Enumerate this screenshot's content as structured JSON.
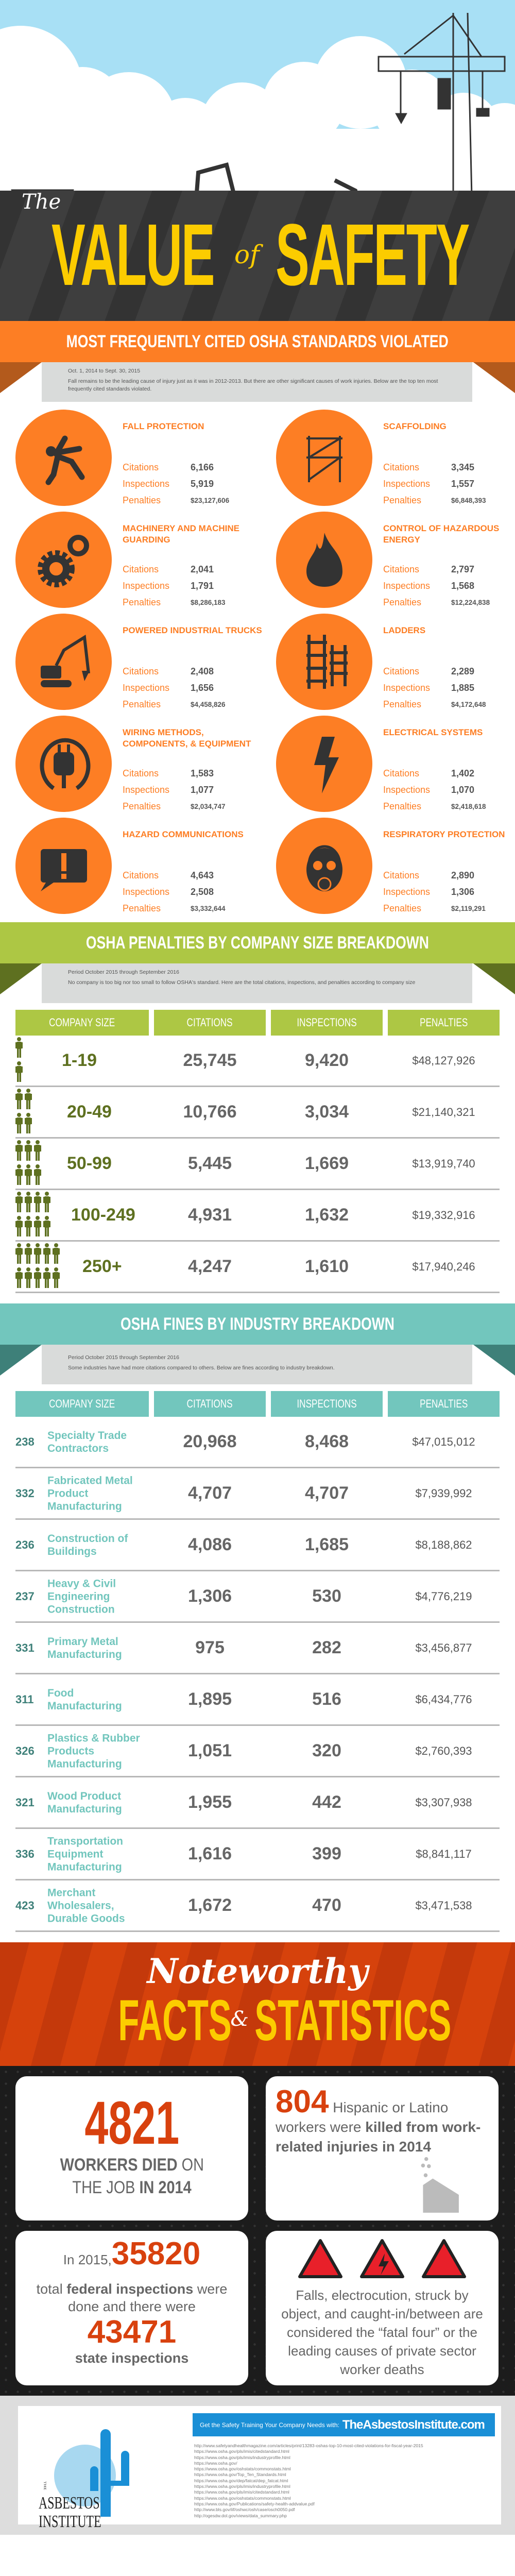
{
  "hero": {
    "the": "The",
    "value": "VALUE",
    "of": "of",
    "safety": "SAFETY"
  },
  "standards": {
    "title": "MOST FREQUENTLY CITED OSHA STANDARDS VIOLATED",
    "period": "Oct. 1, 2014 to Sept. 30, 2015",
    "description": "Fall remains to be the leading cause of injury just as it was in 2012-2013. But there are other significant causes of work injuries. Below are the top ten most frequently cited standards violated.",
    "labels": {
      "citations": "Citations",
      "inspections": "Inspections",
      "penalties": "Penalties"
    },
    "items": [
      {
        "name": "FALL PROTECTION",
        "icon": "falling-person-icon",
        "citations": "6,166",
        "inspections": "5,919",
        "penalties": "$23,127,606"
      },
      {
        "name": "SCAFFOLDING",
        "icon": "scaffolding-icon",
        "citations": "3,345",
        "inspections": "1,557",
        "penalties": "$6,848,393"
      },
      {
        "name": "MACHINERY AND MACHINE GUARDING",
        "icon": "gears-icon",
        "citations": "2,041",
        "inspections": "1,791",
        "penalties": "$8,286,183"
      },
      {
        "name": "CONTROL OF HAZARDOUS ENERGY",
        "icon": "fire-icon",
        "citations": "2,797",
        "inspections": "1,568",
        "penalties": "$12,224,838"
      },
      {
        "name": "POWERED INDUSTRIAL TRUCKS",
        "icon": "excavator-icon",
        "citations": "2,408",
        "inspections": "1,656",
        "penalties": "$4,458,826"
      },
      {
        "name": "LADDERS",
        "icon": "ladder-icon",
        "citations": "2,289",
        "inspections": "1,885",
        "penalties": "$4,172,648"
      },
      {
        "name": "WIRING METHODS, COMPONENTS, & EQUIPMENT",
        "icon": "plug-icon",
        "citations": "1,583",
        "inspections": "1,077",
        "penalties": "$2,034,747"
      },
      {
        "name": "ELECTRICAL SYSTEMS",
        "icon": "lightning-icon",
        "citations": "1,402",
        "inspections": "1,070",
        "penalties": "$2,418,618"
      },
      {
        "name": "HAZARD COMMUNICATIONS",
        "icon": "warning-sign-icon",
        "citations": "4,643",
        "inspections": "2,508",
        "penalties": "$3,332,644"
      },
      {
        "name": "RESPIRATORY PROTECTION",
        "icon": "gas-mask-icon",
        "citations": "2,890",
        "inspections": "1,306",
        "penalties": "$2,119,291"
      }
    ]
  },
  "company": {
    "title": "OSHA PENALTIES BY COMPANY SIZE BREAKDOWN",
    "period": "Period October 2015 through September 2016",
    "description": "No company is too big nor too small to follow OSHA's standard. Here are the total citations, inspections, and penalties according to company size",
    "headers": [
      "COMPANY SIZE",
      "CITATIONS",
      "INSPECTIONS",
      "PENALTIES"
    ],
    "rows": [
      {
        "size": "1-19",
        "people": 2,
        "citations": "25,745",
        "inspections": "9,420",
        "penalties": "$48,127,926"
      },
      {
        "size": "20-49",
        "people": 4,
        "citations": "10,766",
        "inspections": "3,034",
        "penalties": "$21,140,321"
      },
      {
        "size": "50-99",
        "people": 6,
        "citations": "5,445",
        "inspections": "1,669",
        "penalties": "$13,919,740"
      },
      {
        "size": "100-249",
        "people": 8,
        "citations": "4,931",
        "inspections": "1,632",
        "penalties": "$19,332,916"
      },
      {
        "size": "250+",
        "people": 10,
        "citations": "4,247",
        "inspections": "1,610",
        "penalties": "$17,940,246"
      }
    ]
  },
  "industry": {
    "title": "OSHA FINES BY INDUSTRY BREAKDOWN",
    "period": "Period October 2015 through September 2016",
    "description": "Some industries have had more citations compared to others. Below are fines according to industry breakdown.",
    "headers": [
      "COMPANY SIZE",
      "CITATIONS",
      "INSPECTIONS",
      "PENALTIES"
    ],
    "rows": [
      {
        "code": "238",
        "name": "Specialty Trade Contractors",
        "citations": "20,968",
        "inspections": "8,468",
        "penalties": "$47,015,012"
      },
      {
        "code": "332",
        "name": "Fabricated Metal Product Manufacturing",
        "citations": "4,707",
        "inspections": "4,707",
        "penalties": "$7,939,992"
      },
      {
        "code": "236",
        "name": "Construction of Buildings",
        "citations": "4,086",
        "inspections": "1,685",
        "penalties": "$8,188,862"
      },
      {
        "code": "237",
        "name": "Heavy & Civil Engineering Construction",
        "citations": "1,306",
        "inspections": "530",
        "penalties": "$4,776,219"
      },
      {
        "code": "331",
        "name": "Primary Metal Manufacturing",
        "citations": "975",
        "inspections": "282",
        "penalties": "$3,456,877"
      },
      {
        "code": "311",
        "name": "Food Manufacturing",
        "citations": "1,895",
        "inspections": "516",
        "penalties": "$6,434,776"
      },
      {
        "code": "326",
        "name": "Plastics & Rubber Products Manufacturing",
        "citations": "1,051",
        "inspections": "320",
        "penalties": "$2,760,393"
      },
      {
        "code": "321",
        "name": "Wood Product Manufacturing",
        "citations": "1,955",
        "inspections": "442",
        "penalties": "$3,307,938"
      },
      {
        "code": "336",
        "name": "Transportation Equipment Manufacturing",
        "citations": "1,616",
        "inspections": "399",
        "penalties": "$8,841,117"
      },
      {
        "code": "423",
        "name": "Merchant Wholesalers, Durable Goods",
        "citations": "1,672",
        "inspections": "470",
        "penalties": "$3,471,538"
      }
    ]
  },
  "facts": {
    "title_script": "Noteworthy",
    "title_main_1": "FACTS",
    "title_amp": "&",
    "title_main_2": "STATISTICS",
    "card1": {
      "number": "4821",
      "line1_bold": "WORKERS DIED",
      "line1_light": "ON",
      "line2_light": "THE JOB",
      "line2_bold": "IN 2014"
    },
    "card2": {
      "number": "804",
      "text_light_1": "Hispanic or Latino workers were",
      "text_bold": "killed from work-related injuries in 2014"
    },
    "card3": {
      "prefix": "In 2015,",
      "number1": "35820",
      "t1": "total",
      "t1_bold": "federal inspections",
      "t2": "were done and there were",
      "number2": "43471",
      "t3": "state inspections"
    },
    "card4": {
      "text": "Falls, electrocution, struck by object, and caught-in/between are considered the “fatal four” or the leading causes of private sector worker deaths"
    }
  },
  "footer": {
    "logo_the": "THE",
    "logo_line1": "ASBESTOS",
    "logo_line2": "INSTITUTE",
    "banner_text": "Get the Safety Training Your Company Needs with:",
    "banner_link": "TheAsbestosInstitute.com",
    "sources": [
      "http://www.safetyandhealthmagazine.com/articles/print/13283-oshas-top-10-most-cited-violations-for-fiscal-year-2015",
      "https://www.osha.gov/pls/imis/citedstandard.html",
      "https://www.osha.gov/pls/imis/industryprofile.html",
      "https://www.osha.gov/",
      "https://www.osha.gov/oshstats/commonstats.html",
      "https://www.osha.gov/Top_Ten_Standards.html",
      "https://www.osha.gov/dep/fatcat/dep_fatcat.html",
      "https://www.osha.gov/pls/imis/industryprofile.html",
      "https://www.osha.gov/pls/imis/citedstandard.html",
      "https://www.osha.gov/oshstats/commonstats.html",
      "https://www.osha.gov/Publications/safety-health-addvalue.pdf",
      "http://www.bls.gov/iif/oshwc/osh/case/osch0050.pdf",
      "http://ogesdw.dol.gov/views/data_summary.php"
    ]
  },
  "colors": {
    "orange": "#fd7e24",
    "green": "#adc744",
    "dark_green": "#5e7020",
    "teal": "#72c6bd",
    "dark_teal": "#3e8079",
    "red": "#d8410e",
    "yellow": "#fccc00",
    "blue": "#1a8fd6"
  }
}
